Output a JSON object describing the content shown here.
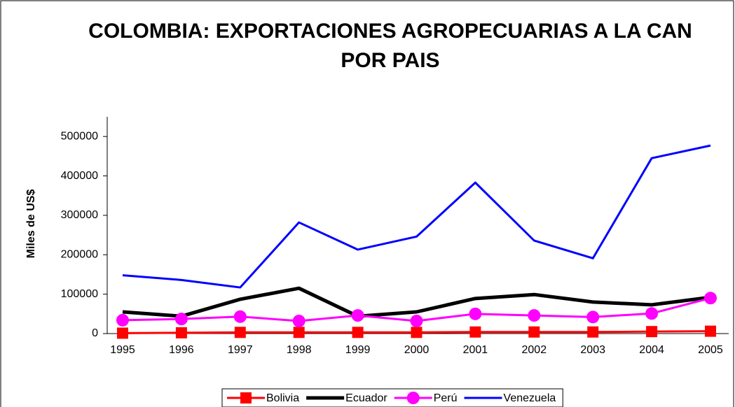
{
  "chart_data": {
    "type": "line",
    "title": "COLOMBIA: EXPORTACIONES AGROPECUARIAS A LA CAN POR PAIS",
    "y_label": "Miles de US$",
    "categories": [
      "1995",
      "1996",
      "1997",
      "1998",
      "1999",
      "2000",
      "2001",
      "2002",
      "2003",
      "2004",
      "2005"
    ],
    "series": [
      {
        "name": "Bolivia",
        "color": "#ff0000",
        "marker": "square",
        "values": [
          1000,
          2000,
          3000,
          3000,
          3000,
          3000,
          4000,
          4000,
          4000,
          5000,
          6000
        ]
      },
      {
        "name": "Ecuador",
        "color": "#000000",
        "values": [
          55000,
          44000,
          87000,
          115000,
          44000,
          55000,
          89000,
          99000,
          80000,
          73000,
          92000
        ]
      },
      {
        "name": "Perú",
        "color": "#ff00ff",
        "marker": "circle",
        "values": [
          34000,
          37000,
          43000,
          32000,
          46000,
          32000,
          50000,
          46000,
          42000,
          51000,
          90000
        ]
      },
      {
        "name": "Venezuela",
        "color": "#0000ff",
        "values": [
          148000,
          136000,
          117000,
          282000,
          213000,
          246000,
          383000,
          236000,
          191000,
          445000,
          477000
        ]
      }
    ],
    "ylim": [
      0,
      550000
    ],
    "yticks": [
      0,
      100000,
      200000,
      300000,
      400000,
      500000
    ],
    "legend": "bottom"
  }
}
